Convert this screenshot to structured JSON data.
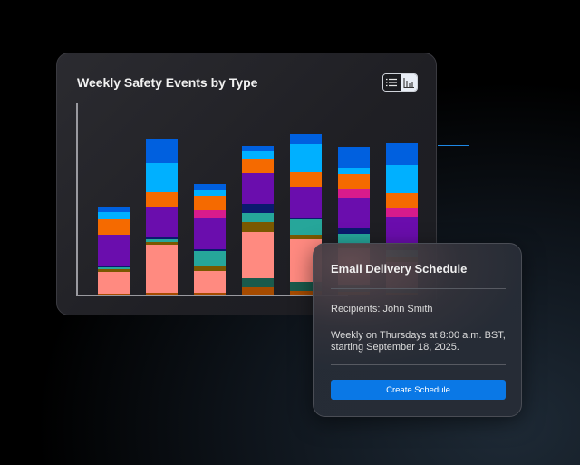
{
  "chart_card": {
    "title": "Weekly Safety Events by Type",
    "view_toggle": {
      "options": [
        "list-icon",
        "bar-chart-icon"
      ],
      "selected": "bar-chart-icon"
    }
  },
  "chart_data": {
    "type": "stacked-bar",
    "title": "Weekly Safety Events by Type",
    "xlabel": "",
    "ylabel": "",
    "grid": false,
    "legend": "none",
    "note_units": "relative (no axis scale printed)",
    "colors": [
      "#a64b00",
      "#1a5a4c",
      "#ff8a80",
      "#7a5800",
      "#26a69a",
      "#0b1a6e",
      "#6a0dad",
      "#d81b8c",
      "#f56a00",
      "#00b0ff",
      "#0060df"
    ],
    "series_count": 11,
    "bars": [
      [
        2,
        0,
        24,
        3,
        2,
        2,
        34,
        0,
        17,
        8,
        6
      ],
      [
        3,
        0,
        53,
        3,
        3,
        2,
        34,
        0,
        16,
        32,
        27
      ],
      [
        3,
        0,
        24,
        5,
        17,
        2,
        34,
        9,
        16,
        6,
        7
      ],
      [
        9,
        10,
        51,
        11,
        10,
        10,
        34,
        0,
        16,
        8,
        6
      ],
      [
        5,
        10,
        47,
        5,
        17,
        2,
        34,
        0,
        16,
        31,
        11
      ],
      [
        4,
        8,
        40,
        5,
        11,
        7,
        33,
        10,
        16,
        7,
        23
      ],
      [
        3,
        4,
        30,
        5,
        8,
        4,
        33,
        10,
        16,
        31,
        24
      ]
    ]
  },
  "accent_color": "#0a78e6",
  "email_card": {
    "title": "Email Delivery Schedule",
    "recipients": "Recipients: John Smith",
    "schedule": "Weekly on Thursdays at 8:00 a.m. BST, starting September 18, 2025.",
    "button_label": "Create Schedule"
  }
}
